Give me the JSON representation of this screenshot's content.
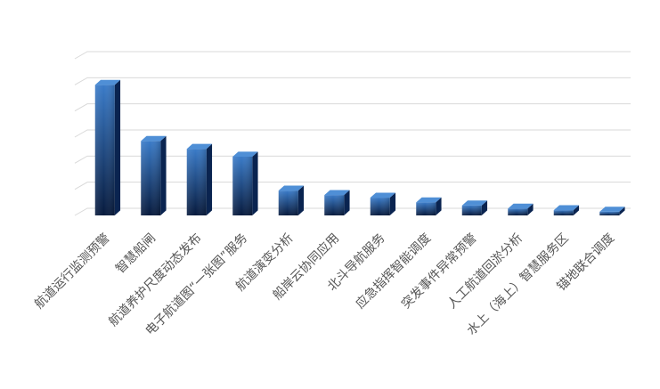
{
  "chart_data": {
    "type": "bar",
    "style": "3d-column",
    "categories": [
      "航道运行监测预警",
      "智慧船闸",
      "航道养护尺度动态发布",
      "电子航道图“一张图”服务",
      "航道演变分析",
      "船岸云协同应用",
      "北斗导航服务",
      "应急指挥智能调度",
      "突发事件异常预警",
      "人工航道回淤分析",
      "水上（海上）智慧服务区",
      "锚地联合调度"
    ],
    "values": [
      5,
      2.85,
      2.55,
      2.25,
      0.95,
      0.78,
      0.68,
      0.5,
      0.38,
      0.26,
      0.2,
      0.14
    ],
    "ylim": [
      0,
      6
    ],
    "grid": true,
    "title": "",
    "xlabel": "",
    "ylabel": "",
    "colors": {
      "bar_top": "#3a7bc8",
      "bar_bottom": "#071a3d",
      "bar_side": "#0a2450",
      "bar_cap": "#4f8fd6",
      "grid": "#d9d9d9",
      "label": "#555555"
    }
  }
}
